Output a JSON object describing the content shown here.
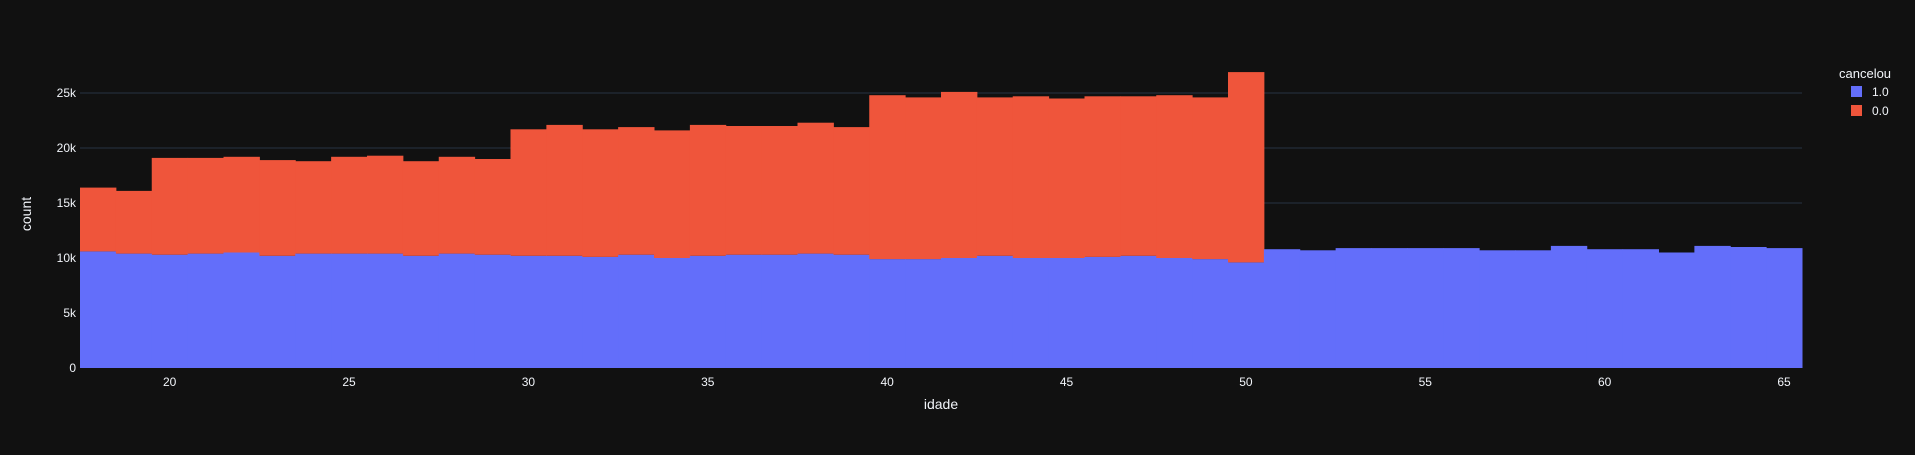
{
  "chart_data": {
    "type": "bar",
    "mode": "stacked-histogram",
    "xlabel": "idade",
    "ylabel": "count",
    "xlim": [
      17.5,
      65.5
    ],
    "ylim": [
      0,
      28000
    ],
    "x_ticks": [
      20,
      25,
      30,
      35,
      40,
      45,
      50,
      55,
      60,
      65
    ],
    "y_ticks": [
      0,
      5000,
      10000,
      15000,
      20000,
      25000
    ],
    "y_tick_labels": [
      "0",
      "5k",
      "10k",
      "15k",
      "20k",
      "25k"
    ],
    "grid": true,
    "legend": {
      "title": "cancelou",
      "placement": "top-right"
    },
    "x": [
      18,
      19,
      20,
      21,
      22,
      23,
      24,
      25,
      26,
      27,
      28,
      29,
      30,
      31,
      32,
      33,
      34,
      35,
      36,
      37,
      38,
      39,
      40,
      41,
      42,
      43,
      44,
      45,
      46,
      47,
      48,
      49,
      50,
      51,
      52,
      53,
      54,
      55,
      56,
      57,
      58,
      59,
      60,
      61,
      62,
      63,
      64,
      65
    ],
    "series": [
      {
        "name": "1.0",
        "color": "#636efa",
        "values": [
          10600,
          10400,
          10300,
          10400,
          10500,
          10200,
          10400,
          10400,
          10400,
          10200,
          10400,
          10300,
          10200,
          10200,
          10100,
          10300,
          10000,
          10200,
          10300,
          10300,
          10400,
          10300,
          9900,
          9900,
          10000,
          10200,
          10000,
          10000,
          10100,
          10200,
          10000,
          9900,
          9600,
          10800,
          10700,
          10900,
          10900,
          10900,
          10900,
          10700,
          10700,
          11100,
          10800,
          10800,
          10500,
          11100,
          11000,
          10900
        ]
      },
      {
        "name": "0.0",
        "color": "#ef553b",
        "values": [
          5800,
          5700,
          8800,
          8700,
          8700,
          8700,
          8400,
          8800,
          8900,
          8600,
          8800,
          8700,
          11500,
          11900,
          11600,
          11600,
          11600,
          11900,
          11700,
          11700,
          11900,
          11600,
          14900,
          14700,
          15100,
          14400,
          14700,
          14500,
          14600,
          14500,
          14800,
          14700,
          17300,
          0,
          0,
          0,
          0,
          0,
          0,
          0,
          0,
          0,
          0,
          0,
          0,
          0,
          0,
          0
        ]
      }
    ]
  }
}
